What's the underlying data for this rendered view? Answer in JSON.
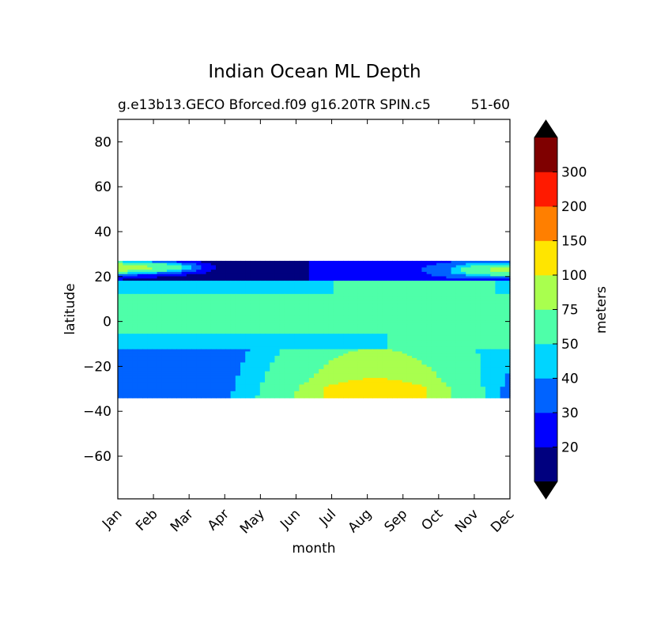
{
  "chart_data": {
    "type": "filled-contour",
    "title": "Indian Ocean ML Depth",
    "subtitle_left": "g.e13b13.GECO Bforced.f09 g16.20TR SPIN.c5",
    "subtitle_right": "51-60",
    "xlabel": "month",
    "ylabel": "latitude",
    "x_ticks": [
      "Jan",
      "Feb",
      "Mar",
      "Apr",
      "May",
      "Jun",
      "Jul",
      "Aug",
      "Sep",
      "Oct",
      "Nov",
      "Dec"
    ],
    "y_ticks": [
      80,
      60,
      40,
      20,
      0,
      -20,
      -40,
      -60
    ],
    "ylim": [
      -79,
      90
    ],
    "data_lat_range": [
      -34,
      27
    ],
    "colorbar": {
      "label": "meters",
      "extend": "both",
      "levels": [
        10,
        20,
        30,
        40,
        50,
        75,
        100,
        150,
        200,
        300,
        400
      ],
      "tick_labels": [
        "20",
        "30",
        "40",
        "50",
        "75",
        "100",
        "150",
        "200",
        "300"
      ],
      "colors": [
        "#00007f",
        "#0000ff",
        "#0063ff",
        "#00d5ff",
        "#4effa9",
        "#a9ff4e",
        "#ffe500",
        "#ff7f00",
        "#ff1a00",
        "#7f0000"
      ],
      "under_color": "#000000",
      "over_color": "#000000"
    }
  }
}
